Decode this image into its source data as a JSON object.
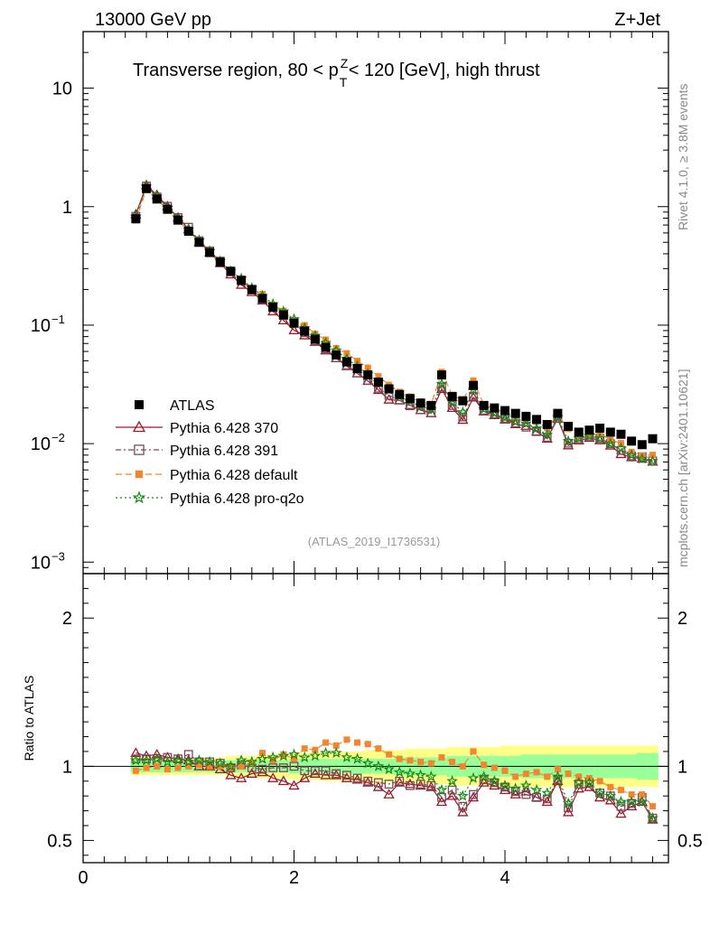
{
  "header": {
    "energy_label": "13000 GeV pp",
    "process_label": "Z+Jet",
    "plot_title_prefix": "Transverse region, 80 < p",
    "plot_title_sup": "Z",
    "plot_title_sub": "T",
    "plot_title_suffix": " < 120 [GeV], high thrust",
    "side_rivet": "Rivet 4.1.0, ≥ 3.8M events",
    "side_mcplots": "mcplots.cern.ch [arXiv:2401.10621]",
    "analysis_id": "(ATLAS_2019_I1736531)"
  },
  "legend": [
    {
      "key": "atlas",
      "label": "ATLAS"
    },
    {
      "key": "p370",
      "label": "Pythia 6.428 370"
    },
    {
      "key": "p391",
      "label": "Pythia 6.428 391"
    },
    {
      "key": "pdef",
      "label": "Pythia 6.428 default"
    },
    {
      "key": "pq2o",
      "label": "Pythia 6.428 pro-q2o"
    }
  ],
  "colors": {
    "atlas": "#000000",
    "p370": "#9b1b2a",
    "p391": "#7a4a5e",
    "pdef": "#f5842f",
    "pq2o": "#138a13",
    "band_yellow": "#ffff88",
    "band_green": "#99ff99"
  },
  "chart_data": {
    "type": "line",
    "x": [
      0.5,
      0.6,
      0.7,
      0.8,
      0.9,
      1.0,
      1.1,
      1.2,
      1.3,
      1.4,
      1.5,
      1.6,
      1.7,
      1.8,
      1.9,
      2.0,
      2.1,
      2.2,
      2.3,
      2.4,
      2.5,
      2.6,
      2.7,
      2.8,
      2.9,
      3.0,
      3.1,
      3.2,
      3.3,
      3.4,
      3.5,
      3.6,
      3.7,
      3.8,
      3.9,
      4.0,
      4.1,
      4.2,
      4.3,
      4.4,
      4.5,
      4.6,
      4.7,
      4.8,
      4.9,
      5.0,
      5.1,
      5.2,
      5.3,
      5.4
    ],
    "main": {
      "yscale": "log",
      "ylim": [
        0.0008,
        30
      ],
      "yticks": [
        {
          "v": 10,
          "label": "10"
        },
        {
          "v": 1,
          "label": "1"
        },
        {
          "v": 0.1,
          "label": "10",
          "exp": "−1"
        },
        {
          "v": 0.01,
          "label": "10",
          "exp": "−2"
        },
        {
          "v": 0.001,
          "label": "10",
          "exp": "−3"
        }
      ],
      "atlas": [
        0.79,
        1.42,
        1.16,
        0.95,
        0.77,
        0.62,
        0.5,
        0.41,
        0.34,
        0.285,
        0.238,
        0.2,
        0.168,
        0.142,
        0.122,
        0.104,
        0.089,
        0.076,
        0.065,
        0.056,
        0.049,
        0.043,
        0.038,
        0.033,
        0.029,
        0.026,
        0.024,
        0.022,
        0.021,
        0.038,
        0.025,
        0.023,
        0.031,
        0.021,
        0.02,
        0.019,
        0.018,
        0.017,
        0.016,
        0.0145,
        0.018,
        0.014,
        0.0125,
        0.013,
        0.0135,
        0.0125,
        0.012,
        0.0105,
        0.0098,
        0.011
      ]
    },
    "ratio": {
      "ylim": [
        0.35,
        2.3
      ],
      "yticks": [
        {
          "v": 0.5,
          "label": "0.5"
        },
        {
          "v": 1,
          "label": "1"
        },
        {
          "v": 2,
          "label": "2"
        }
      ],
      "ylabel": "Ratio to ATLAS",
      "band_green": [
        0.04,
        0.04,
        0.04,
        0.04,
        0.04,
        0.04,
        0.04,
        0.04,
        0.04,
        0.04,
        0.04,
        0.04,
        0.04,
        0.04,
        0.04,
        0.05,
        0.05,
        0.05,
        0.05,
        0.05,
        0.05,
        0.05,
        0.05,
        0.05,
        0.05,
        0.06,
        0.06,
        0.06,
        0.06,
        0.06,
        0.07,
        0.07,
        0.07,
        0.07,
        0.07,
        0.07,
        0.07,
        0.08,
        0.08,
        0.08,
        0.08,
        0.08,
        0.08,
        0.08,
        0.08,
        0.08,
        0.08,
        0.08,
        0.09,
        0.09
      ],
      "band_yellow": [
        0.06,
        0.06,
        0.06,
        0.06,
        0.06,
        0.06,
        0.06,
        0.06,
        0.06,
        0.07,
        0.07,
        0.07,
        0.08,
        0.08,
        0.08,
        0.09,
        0.09,
        0.09,
        0.1,
        0.1,
        0.1,
        0.1,
        0.11,
        0.11,
        0.11,
        0.11,
        0.12,
        0.12,
        0.12,
        0.12,
        0.13,
        0.13,
        0.13,
        0.13,
        0.13,
        0.14,
        0.14,
        0.14,
        0.14,
        0.14,
        0.14,
        0.14,
        0.14,
        0.14,
        0.14,
        0.14,
        0.14,
        0.14,
        0.14,
        0.14
      ],
      "series": [
        {
          "key": "p370",
          "name": "Pythia 6.428 370",
          "marker": "triangle",
          "dash": "",
          "values": [
            1.09,
            1.07,
            1.08,
            1.06,
            1.05,
            1.04,
            1.0,
            1.0,
            0.98,
            0.94,
            0.92,
            0.95,
            0.96,
            0.92,
            0.9,
            0.87,
            0.92,
            0.95,
            0.94,
            0.94,
            0.92,
            0.91,
            0.89,
            0.86,
            0.81,
            0.89,
            0.88,
            0.87,
            0.86,
            0.76,
            0.8,
            0.69,
            0.79,
            0.89,
            0.87,
            0.84,
            0.81,
            0.83,
            0.79,
            0.76,
            0.9,
            0.69,
            0.85,
            0.86,
            0.79,
            0.77,
            0.68,
            0.73,
            0.76,
            0.64
          ]
        },
        {
          "key": "p391",
          "name": "Pythia 6.428 391",
          "marker": "square",
          "dash": "6,3,2,3",
          "values": [
            1.05,
            1.05,
            1.04,
            1.06,
            1.05,
            1.08,
            1.03,
            1.03,
            1.02,
            0.99,
            1.01,
            0.99,
            0.98,
            0.99,
            0.99,
            1.0,
            0.97,
            0.97,
            0.97,
            0.95,
            0.94,
            0.92,
            0.9,
            0.89,
            0.88,
            0.9,
            0.87,
            0.88,
            0.87,
            0.79,
            0.84,
            0.73,
            0.81,
            0.91,
            0.89,
            0.86,
            0.83,
            0.81,
            0.79,
            0.78,
            0.91,
            0.72,
            0.88,
            0.89,
            0.82,
            0.8,
            0.73,
            0.75,
            0.79,
            0.65
          ]
        },
        {
          "key": "pdef",
          "name": "Pythia 6.428 default",
          "marker": "fsquare",
          "dash": "7,4",
          "values": [
            0.97,
            0.99,
            1.0,
            0.98,
            0.99,
            1.0,
            1.01,
            1.0,
            1.0,
            0.99,
            1.0,
            1.02,
            1.09,
            1.04,
            1.08,
            1.05,
            1.12,
            1.11,
            1.16,
            1.14,
            1.18,
            1.16,
            1.15,
            1.12,
            1.08,
            1.05,
            1.04,
            1.03,
            1.02,
            1.06,
            1.03,
            1.0,
            1.1,
            1.01,
            0.99,
            0.97,
            0.93,
            0.95,
            0.96,
            0.93,
            0.98,
            0.95,
            0.93,
            0.92,
            0.9,
            0.86,
            0.84,
            0.81,
            0.81,
            0.73
          ]
        },
        {
          "key": "pq2o",
          "name": "Pythia 6.428 pro-q2o",
          "marker": "star",
          "dash": "2,3",
          "values": [
            1.04,
            1.04,
            1.05,
            1.03,
            1.04,
            1.03,
            1.04,
            1.03,
            1.02,
            1.0,
            1.04,
            1.03,
            1.05,
            1.06,
            1.07,
            1.08,
            1.06,
            1.07,
            1.09,
            1.09,
            1.06,
            1.05,
            1.02,
            1.0,
            0.98,
            0.96,
            0.95,
            0.94,
            0.93,
            0.84,
            0.9,
            0.8,
            0.92,
            0.93,
            0.9,
            0.87,
            0.85,
            0.87,
            0.84,
            0.82,
            0.93,
            0.75,
            0.89,
            0.89,
            0.82,
            0.8,
            0.76,
            0.76,
            0.76,
            0.65
          ]
        }
      ]
    },
    "xlim": [
      0,
      5.55
    ],
    "xticks": [
      {
        "v": 0,
        "label": "0"
      },
      {
        "v": 2,
        "label": "2"
      },
      {
        "v": 4,
        "label": "4"
      }
    ],
    "xlabel": ""
  }
}
